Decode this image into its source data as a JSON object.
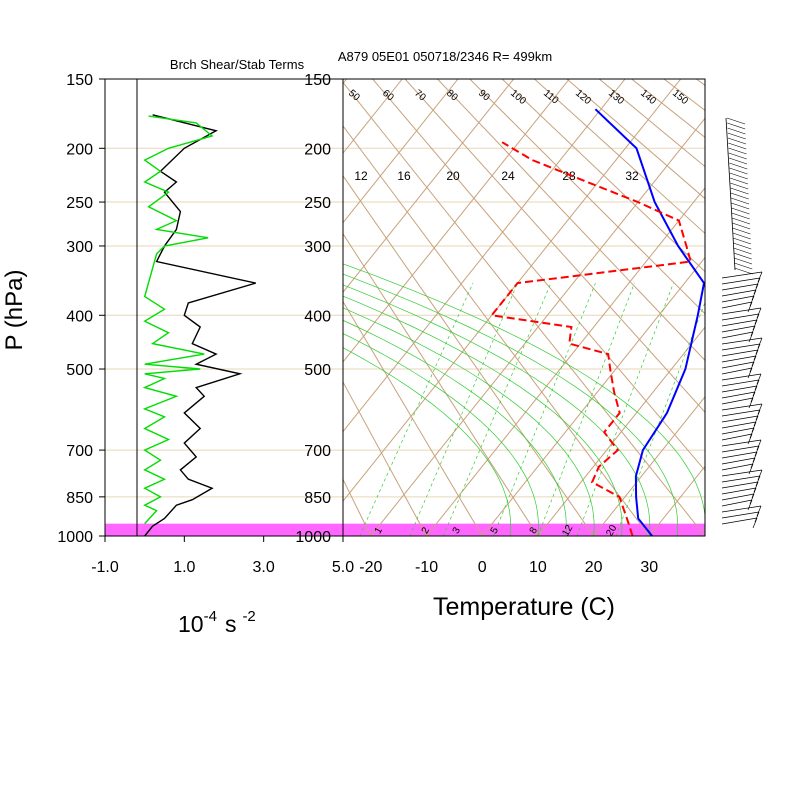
{
  "header": {
    "left_title": "Brch Shear/Stab Terms",
    "right_title": "A879 05E01 050718/2346 R= 499km"
  },
  "chart_data": [
    {
      "id": "shear-stability-profile",
      "type": "line",
      "title": "Brch Shear/Stab Terms",
      "xlabel": "10",
      "xlabel_exp": "-4",
      "xlabel_units": "s",
      "xlabel_units_exp": "-2",
      "ylabel": "P (hPa)",
      "y_scale": "log",
      "ylim": [
        1000,
        150
      ],
      "xlim": [
        -1.0,
        5.0
      ],
      "x_ticks": [
        "-1.0",
        "1.0",
        "3.0",
        "5.0"
      ],
      "y_ticks": [
        "150",
        "200",
        "250",
        "300",
        "400",
        "500",
        "700",
        "850",
        "1000"
      ],
      "grid": true,
      "series": [
        {
          "color": "#000000",
          "points": [
            [
              0.0,
              1000
            ],
            [
              0.2,
              960
            ],
            [
              0.5,
              930
            ],
            [
              0.8,
              880
            ],
            [
              1.2,
              860
            ],
            [
              1.7,
              820
            ],
            [
              1.1,
              790
            ],
            [
              0.9,
              760
            ],
            [
              1.3,
              720
            ],
            [
              1.0,
              680
            ],
            [
              1.4,
              640
            ],
            [
              1.0,
              600
            ],
            [
              1.5,
              560
            ],
            [
              1.3,
              540
            ],
            [
              2.4,
              510
            ],
            [
              1.3,
              490
            ],
            [
              1.8,
              470
            ],
            [
              1.2,
              450
            ],
            [
              1.4,
              420
            ],
            [
              1.0,
              400
            ],
            [
              1.1,
              380
            ],
            [
              2.8,
              350
            ],
            [
              0.3,
              320
            ],
            [
              0.5,
              300
            ],
            [
              0.8,
              280
            ],
            [
              0.9,
              260
            ],
            [
              0.5,
              240
            ],
            [
              0.8,
              230
            ],
            [
              0.4,
              220
            ],
            [
              1.0,
              200
            ],
            [
              1.8,
              186
            ],
            [
              0.2,
              174
            ]
          ]
        },
        {
          "color": "#00dd00",
          "points": [
            [
              0.0,
              950
            ],
            [
              0.3,
              900
            ],
            [
              0.0,
              880
            ],
            [
              0.4,
              850
            ],
            [
              0.0,
              820
            ],
            [
              0.5,
              790
            ],
            [
              0.0,
              760
            ],
            [
              0.4,
              730
            ],
            [
              0.0,
              700
            ],
            [
              0.6,
              670
            ],
            [
              0.0,
              640
            ],
            [
              0.5,
              610
            ],
            [
              0.0,
              590
            ],
            [
              0.8,
              560
            ],
            [
              0.0,
              540
            ],
            [
              0.5,
              520
            ],
            [
              0.0,
              510
            ],
            [
              1.4,
              500
            ],
            [
              0.0,
              490
            ],
            [
              1.5,
              470
            ],
            [
              0.2,
              450
            ],
            [
              0.6,
              430
            ],
            [
              0.0,
              410
            ],
            [
              0.5,
              390
            ],
            [
              0.0,
              370
            ],
            [
              0.3,
              310
            ],
            [
              0.5,
              300
            ],
            [
              1.6,
              290
            ],
            [
              0.3,
              280
            ],
            [
              0.8,
              270
            ],
            [
              0.1,
              255
            ],
            [
              0.6,
              240
            ],
            [
              0.0,
              230
            ],
            [
              0.4,
              220
            ],
            [
              0.0,
              210
            ],
            [
              0.6,
              200
            ],
            [
              1.7,
              190
            ],
            [
              1.3,
              180
            ],
            [
              0.1,
              175
            ]
          ]
        }
      ],
      "highlight_band": {
        "from": 950,
        "to": 1000,
        "color": "#ff66ff"
      }
    },
    {
      "id": "skew-t-log-p",
      "type": "line",
      "title": "A879 05E01 050718/2346 R= 499km",
      "xlabel": "Temperature (C)",
      "y_scale": "log",
      "ylim": [
        1000,
        150
      ],
      "xlim_at_1000hPa": [
        -25,
        40
      ],
      "x_ticks": [
        "-20",
        "-10",
        "0",
        "10",
        "20",
        "30"
      ],
      "y_ticks": [
        "150",
        "200",
        "250",
        "300",
        "400",
        "500",
        "700",
        "850",
        "1000"
      ],
      "dry_adiabat_labels": [
        "50",
        "60",
        "70",
        "80",
        "90",
        "100",
        "110",
        "120",
        "130",
        "140",
        "150"
      ],
      "mixing_ratio_top_labels": [
        "12",
        "16",
        "20",
        "24",
        "28",
        "32"
      ],
      "mixing_ratio_bottom_labels": [
        "1",
        "2",
        "3",
        "5",
        "8",
        "12",
        "20"
      ],
      "series": [
        {
          "kind": "temperature",
          "color": "#0000ff",
          "points": [
            [
              30.5,
              1000
            ],
            [
              25.5,
              930
            ],
            [
              22.0,
              850
            ],
            [
              19.0,
              780
            ],
            [
              16.5,
              700
            ],
            [
              15.5,
              600
            ],
            [
              12.5,
              500
            ],
            [
              7.0,
              400
            ],
            [
              3.5,
              350
            ],
            [
              -6.5,
              300
            ],
            [
              -17.0,
              250
            ],
            [
              -28.0,
              200
            ],
            [
              -41.0,
              170
            ]
          ]
        },
        {
          "kind": "dewpoint",
          "color": "#ff0000",
          "dash": true,
          "points": [
            [
              27.0,
              1000
            ],
            [
              24.0,
              940
            ],
            [
              19.0,
              850
            ],
            [
              12.0,
              800
            ],
            [
              11.0,
              750
            ],
            [
              12.0,
              700
            ],
            [
              7.0,
              650
            ],
            [
              7.0,
              600
            ],
            [
              3.0,
              550
            ],
            [
              -1.0,
              500
            ],
            [
              -3.5,
              470
            ],
            [
              -12.0,
              450
            ],
            [
              -14.0,
              420
            ],
            [
              -30.0,
              400
            ],
            [
              -30.0,
              370
            ],
            [
              -30.0,
              350
            ],
            [
              -2.0,
              320
            ],
            [
              -5.0,
              300
            ],
            [
              -10.0,
              270
            ],
            [
              -20.0,
              250
            ],
            [
              -32.0,
              230
            ],
            [
              -45.0,
              210
            ],
            [
              -53.0,
              195
            ]
          ]
        }
      ],
      "highlight_band": {
        "from": 950,
        "to": 1000,
        "color": "#ff66ff"
      }
    }
  ]
}
